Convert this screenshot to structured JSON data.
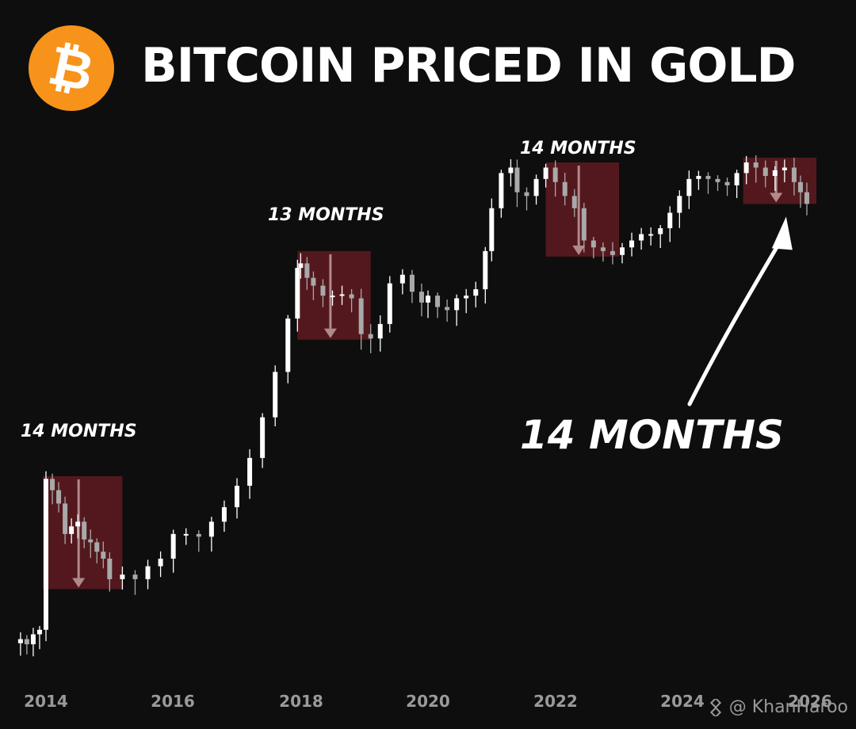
{
  "title": "BITCOIN PRICED IN GOLD",
  "logo": {
    "icon": "bitcoin-logo-icon",
    "glyph": "₿",
    "color": "#F7931A"
  },
  "watermark": {
    "text": "@ KhanHaroo",
    "icon": "binance-diamond-icon"
  },
  "colors": {
    "background": "#0e0e0e",
    "candle_up": "#ffffff",
    "candle_down": "#a9a9a9",
    "drawdown_box": "#7a1f27",
    "axis_text": "#9a9a9a"
  },
  "chart_data": {
    "type": "candlestick",
    "title": "BITCOIN PRICED IN GOLD",
    "xlabel": "",
    "ylabel": "",
    "x_ticks": [
      "2014",
      "2016",
      "2018",
      "2020",
      "2022",
      "2024",
      "2026"
    ],
    "x_range": [
      2013.5,
      2026.2
    ],
    "y_scale": "log",
    "y_axis_labels_shown": false,
    "grid": false,
    "series": [
      {
        "points": [
          [
            2013.6,
            0.08
          ],
          [
            2013.7,
            0.075
          ],
          [
            2013.8,
            0.085
          ],
          [
            2013.9,
            0.09
          ],
          [
            2014.0,
            0.6
          ],
          [
            2014.1,
            0.52
          ],
          [
            2014.2,
            0.44
          ],
          [
            2014.3,
            0.3
          ],
          [
            2014.4,
            0.33
          ],
          [
            2014.5,
            0.35
          ],
          [
            2014.6,
            0.28
          ],
          [
            2014.7,
            0.27
          ],
          [
            2014.8,
            0.24
          ],
          [
            2014.9,
            0.22
          ],
          [
            2015.0,
            0.17
          ],
          [
            2015.2,
            0.18
          ],
          [
            2015.4,
            0.17
          ],
          [
            2015.6,
            0.2
          ],
          [
            2015.8,
            0.22
          ],
          [
            2016.0,
            0.3
          ],
          [
            2016.2,
            0.3
          ],
          [
            2016.4,
            0.29
          ],
          [
            2016.6,
            0.35
          ],
          [
            2016.8,
            0.42
          ],
          [
            2017.0,
            0.55
          ],
          [
            2017.2,
            0.78
          ],
          [
            2017.4,
            1.3
          ],
          [
            2017.6,
            2.3
          ],
          [
            2017.8,
            4.5
          ],
          [
            2017.95,
            8.5
          ],
          [
            2018.0,
            9.0
          ],
          [
            2018.1,
            7.5
          ],
          [
            2018.2,
            6.8
          ],
          [
            2018.35,
            6.0
          ],
          [
            2018.5,
            6.0
          ],
          [
            2018.65,
            6.1
          ],
          [
            2018.8,
            5.8
          ],
          [
            2018.95,
            3.7
          ],
          [
            2019.1,
            3.5
          ],
          [
            2019.25,
            4.2
          ],
          [
            2019.4,
            7.0
          ],
          [
            2019.6,
            7.8
          ],
          [
            2019.75,
            6.3
          ],
          [
            2019.9,
            5.5
          ],
          [
            2020.0,
            6.0
          ],
          [
            2020.15,
            5.2
          ],
          [
            2020.3,
            5.0
          ],
          [
            2020.45,
            5.8
          ],
          [
            2020.6,
            6.0
          ],
          [
            2020.75,
            6.5
          ],
          [
            2020.9,
            10.5
          ],
          [
            2021.0,
            18.0
          ],
          [
            2021.15,
            28.0
          ],
          [
            2021.3,
            30.0
          ],
          [
            2021.4,
            22.0
          ],
          [
            2021.55,
            21.0
          ],
          [
            2021.7,
            26.0
          ],
          [
            2021.85,
            30.0
          ],
          [
            2022.0,
            25.0
          ],
          [
            2022.15,
            21.0
          ],
          [
            2022.3,
            18.0
          ],
          [
            2022.45,
            12.0
          ],
          [
            2022.6,
            11.0
          ],
          [
            2022.75,
            10.5
          ],
          [
            2022.9,
            10.0
          ],
          [
            2023.05,
            11.0
          ],
          [
            2023.2,
            12.0
          ],
          [
            2023.35,
            13.0
          ],
          [
            2023.5,
            13.0
          ],
          [
            2023.65,
            14.0
          ],
          [
            2023.8,
            17.0
          ],
          [
            2023.95,
            21.0
          ],
          [
            2024.1,
            26.0
          ],
          [
            2024.25,
            27.0
          ],
          [
            2024.4,
            26.0
          ],
          [
            2024.55,
            25.0
          ],
          [
            2024.7,
            24.0
          ],
          [
            2024.85,
            28.0
          ],
          [
            2025.0,
            32.0
          ],
          [
            2025.15,
            30.0
          ],
          [
            2025.3,
            27.0
          ],
          [
            2025.45,
            29.0
          ],
          [
            2025.6,
            30.0
          ],
          [
            2025.75,
            25.0
          ],
          [
            2025.85,
            22.0
          ],
          [
            2025.95,
            19.0
          ]
        ]
      }
    ],
    "shaded_regions": [
      {
        "label": "14 MONTHS",
        "x_start": 2013.95,
        "x_end": 2015.2,
        "y_top": 0.62,
        "y_bottom": 0.15
      },
      {
        "label": "13 MONTHS",
        "x_start": 2017.95,
        "x_end": 2019.1,
        "y_top": 10.5,
        "y_bottom": 3.45
      },
      {
        "label": "14 MONTHS",
        "x_start": 2021.85,
        "x_end": 2023.0,
        "y_top": 32.0,
        "y_bottom": 9.8
      },
      {
        "label": "",
        "x_start": 2024.95,
        "x_end": 2026.1,
        "y_top": 34.0,
        "y_bottom": 19.0
      }
    ],
    "annotations": [
      {
        "text": "14 MONTHS",
        "style": "large-italic",
        "arrow_to": "last-shaded-region"
      }
    ]
  }
}
